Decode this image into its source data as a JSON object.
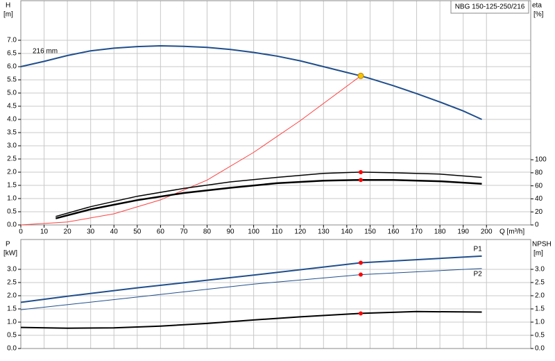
{
  "chart_data": [
    {
      "type": "line",
      "title": "NBG 150-125-250/216",
      "xlabel": "Q [m³/h]",
      "ylabel": "H",
      "yunit": "[m]",
      "y2label": "eta",
      "y2unit": "[%]",
      "xlim": [
        0,
        219
      ],
      "ylim": [
        0,
        8.5
      ],
      "y2lim": [
        0,
        344
      ],
      "xticks": [
        0,
        10,
        20,
        30,
        40,
        50,
        60,
        70,
        80,
        90,
        100,
        110,
        120,
        130,
        140,
        150,
        160,
        170,
        180,
        190,
        200
      ],
      "yticks": [
        {
          "value": 0,
          "label": "0.0"
        },
        {
          "value": 0.5,
          "label": "0.5"
        },
        {
          "value": 1,
          "label": "1.0"
        },
        {
          "value": 1.5,
          "label": "1.5"
        },
        {
          "value": 2,
          "label": "2.0"
        },
        {
          "value": 2.5,
          "label": "2.5"
        },
        {
          "value": 3,
          "label": "3.0"
        },
        {
          "value": 3.5,
          "label": "3.5"
        },
        {
          "value": 4,
          "label": "4.0"
        },
        {
          "value": 4.5,
          "label": "4.5"
        },
        {
          "value": 5,
          "label": "5.0"
        },
        {
          "value": 5.5,
          "label": "5.5"
        },
        {
          "value": 6,
          "label": "6.0"
        },
        {
          "value": 6.5,
          "label": "6.5"
        },
        {
          "value": 7,
          "label": "7.0"
        }
      ],
      "y2ticks": [
        0,
        20,
        40,
        60,
        80,
        100
      ],
      "grid": true,
      "series": [
        {
          "label": "216 mm",
          "color": "#1f4e8c",
          "width": 2,
          "x": [
            0,
            10,
            20,
            30,
            40,
            50,
            60,
            70,
            80,
            90,
            100,
            110,
            120,
            130,
            140,
            146,
            150,
            160,
            170,
            180,
            190,
            198
          ],
          "values": [
            6.0,
            6.2,
            6.42,
            6.6,
            6.7,
            6.76,
            6.79,
            6.77,
            6.73,
            6.65,
            6.54,
            6.4,
            6.22,
            6.0,
            5.78,
            5.65,
            5.55,
            5.28,
            4.98,
            4.66,
            4.32,
            4.0
          ]
        },
        {
          "color": "#ff4040",
          "width": 1,
          "x": [
            0,
            20,
            40,
            60,
            80,
            100,
            120,
            146
          ],
          "values": [
            0,
            0.11,
            0.42,
            0.95,
            1.7,
            2.75,
            3.95,
            5.65
          ]
        },
        {
          "color": "#000000",
          "width": 1.5,
          "axis": "y2",
          "x": [
            15,
            30,
            50,
            70,
            90,
            110,
            130,
            146,
            160,
            180,
            198
          ],
          "values": [
            13,
            28,
            44,
            56,
            66,
            73,
            79,
            81,
            80,
            78,
            73
          ]
        },
        {
          "color": "#000000",
          "width": 2.5,
          "axis": "y2",
          "x": [
            15,
            30,
            50,
            70,
            90,
            110,
            130,
            146,
            160,
            180,
            198
          ],
          "values": [
            10,
            24,
            38,
            49,
            57,
            64,
            68,
            69,
            69,
            67,
            63
          ]
        }
      ],
      "points": [
        {
          "x": 146,
          "y": 5.65,
          "color": "#f5c400"
        },
        {
          "x": 146,
          "y": 81,
          "axis": "y2",
          "color": "#ff0000"
        },
        {
          "x": 146,
          "y": 69,
          "axis": "y2",
          "color": "#ff0000"
        }
      ]
    },
    {
      "type": "line",
      "ylabel": "P",
      "yunit": "[kW]",
      "y2label": "NPSH",
      "y2unit": "[m]",
      "xlim": [
        0,
        219
      ],
      "ylim": [
        0,
        4.13
      ],
      "y2lim": [
        0,
        4.13
      ],
      "xticks": [
        0,
        10,
        20,
        30,
        40,
        50,
        60,
        70,
        80,
        90,
        100,
        110,
        120,
        130,
        140,
        150,
        160,
        170,
        180,
        190,
        200
      ],
      "yticks": [
        {
          "value": 0,
          "label": "0.0"
        },
        {
          "value": 0.5,
          "label": "0.5"
        },
        {
          "value": 1,
          "label": "1.0"
        },
        {
          "value": 1.5,
          "label": "1.5"
        },
        {
          "value": 2,
          "label": "2.0"
        },
        {
          "value": 2.5,
          "label": "2.5"
        },
        {
          "value": 3,
          "label": "3.0"
        }
      ],
      "y2ticks": [
        {
          "value": 0,
          "label": "0.0"
        },
        {
          "value": 0.5,
          "label": "0.5"
        },
        {
          "value": 1,
          "label": "1.0"
        },
        {
          "value": 1.5,
          "label": "1.5"
        },
        {
          "value": 2,
          "label": "2.0"
        },
        {
          "value": 2.5,
          "label": "2.5"
        },
        {
          "value": 3,
          "label": "3.0"
        }
      ],
      "grid": true,
      "series": [
        {
          "label": "P1",
          "color": "#1f4e8c",
          "width": 2,
          "x": [
            0,
            20,
            50,
            100,
            146,
            198
          ],
          "values": [
            1.75,
            1.98,
            2.3,
            2.78,
            3.25,
            3.5
          ]
        },
        {
          "label": "P2",
          "color": "#1f4e8c",
          "width": 1,
          "x": [
            0,
            50,
            100,
            146,
            198
          ],
          "values": [
            1.47,
            1.95,
            2.44,
            2.8,
            3.03
          ]
        },
        {
          "color": "#000000",
          "width": 2,
          "axis": "y2",
          "x": [
            0,
            20,
            40,
            60,
            80,
            100,
            120,
            146,
            170,
            198
          ],
          "values": [
            0.8,
            0.77,
            0.78,
            0.85,
            0.95,
            1.08,
            1.2,
            1.33,
            1.4,
            1.38
          ]
        }
      ],
      "points": [
        {
          "x": 146,
          "y": 3.25,
          "color": "#ff0000"
        },
        {
          "x": 146,
          "y": 2.8,
          "color": "#ff0000"
        },
        {
          "x": 146,
          "y": 1.33,
          "axis": "y2",
          "color": "#ff0000"
        }
      ]
    }
  ]
}
